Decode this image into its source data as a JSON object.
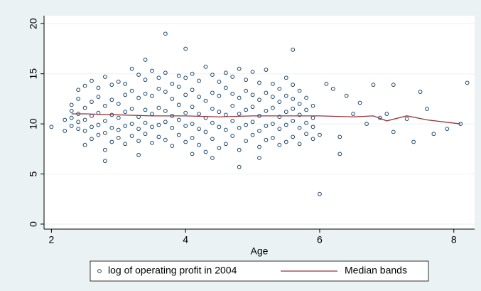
{
  "chart_data": {
    "type": "scatter",
    "xlabel": "Age",
    "xlim": [
      1.89,
      8.31
    ],
    "ylim": [
      -0.5,
      20.8
    ],
    "xticks": [
      2,
      4,
      6,
      8
    ],
    "yticks": [
      0,
      5,
      10,
      15,
      20
    ],
    "grid": true,
    "legend": "bottom",
    "series": [
      {
        "name": "log of operating profit in 2004",
        "type": "scatter",
        "color": "#1a476f",
        "x": [
          2.0,
          2.2,
          2.2,
          3.7,
          4.0,
          5.6,
          3.4,
          6.0,
          4.8,
          5.1,
          4.4,
          2.8,
          3.3,
          4.1,
          6.3,
          7.4,
          8.2,
          7.5,
          7.1,
          6.8,
          8.1,
          7.9,
          7.6,
          7.7,
          7.3,
          7.1,
          7.0,
          6.9,
          6.6,
          6.5,
          6.4,
          6.2,
          6.1,
          6.3,
          6.0,
          6.7,
          2.3,
          2.3,
          2.3,
          2.3,
          2.4,
          2.4,
          2.4,
          2.4,
          2.4,
          2.5,
          2.5,
          2.5,
          2.5,
          2.5,
          2.6,
          2.6,
          2.6,
          2.6,
          2.6,
          2.7,
          2.7,
          2.7,
          2.7,
          2.7,
          2.8,
          2.8,
          2.8,
          2.8,
          2.8,
          2.9,
          2.9,
          2.9,
          2.9,
          2.9,
          3.0,
          3.0,
          3.0,
          3.0,
          3.0,
          3.1,
          3.1,
          3.1,
          3.1,
          3.1,
          3.2,
          3.2,
          3.2,
          3.2,
          3.2,
          3.3,
          3.3,
          3.3,
          3.3,
          3.3,
          3.4,
          3.4,
          3.4,
          3.4,
          3.4,
          3.5,
          3.5,
          3.5,
          3.5,
          3.5,
          3.6,
          3.6,
          3.6,
          3.6,
          3.6,
          3.7,
          3.7,
          3.7,
          3.7,
          3.7,
          3.8,
          3.8,
          3.8,
          3.8,
          3.8,
          3.9,
          3.9,
          3.9,
          3.9,
          3.9,
          4.0,
          4.0,
          4.0,
          4.0,
          4.0,
          4.1,
          4.1,
          4.1,
          4.1,
          4.1,
          4.2,
          4.2,
          4.2,
          4.2,
          4.2,
          4.3,
          4.3,
          4.3,
          4.3,
          4.3,
          4.4,
          4.4,
          4.4,
          4.4,
          4.4,
          4.5,
          4.5,
          4.5,
          4.5,
          4.5,
          4.6,
          4.6,
          4.6,
          4.6,
          4.6,
          4.7,
          4.7,
          4.7,
          4.7,
          4.7,
          4.8,
          4.8,
          4.8,
          4.8,
          4.8,
          4.9,
          4.9,
          4.9,
          4.9,
          4.9,
          5.0,
          5.0,
          5.0,
          5.0,
          5.0,
          5.1,
          5.1,
          5.1,
          5.1,
          5.1,
          5.2,
          5.2,
          5.2,
          5.2,
          5.2,
          5.3,
          5.3,
          5.3,
          5.3,
          5.3,
          5.4,
          5.4,
          5.4,
          5.4,
          5.4,
          5.5,
          5.5,
          5.5,
          5.5,
          5.5,
          5.6,
          5.6,
          5.6,
          5.6,
          5.6,
          5.7,
          5.7,
          5.7,
          5.7,
          5.7,
          5.8,
          5.8,
          5.8,
          5.8,
          5.9,
          5.9,
          5.9,
          5.9
        ],
        "values": [
          9.7,
          9.3,
          10.4,
          19.0,
          17.5,
          17.4,
          16.4,
          3.0,
          5.7,
          6.6,
          6.6,
          6.3,
          6.9,
          7.0,
          7.0,
          8.2,
          14.1,
          13.2,
          13.9,
          13.9,
          10.0,
          9.5,
          11.5,
          9.0,
          10.5,
          9.2,
          11.0,
          10.6,
          12.1,
          11.0,
          12.8,
          13.5,
          14.0,
          8.7,
          8.9,
          10.0,
          9.8,
          10.6,
          11.3,
          11.9,
          9.5,
          10.2,
          11.0,
          12.5,
          13.4,
          7.9,
          9.3,
          10.4,
          11.6,
          13.8,
          8.5,
          9.7,
          10.8,
          12.2,
          14.3,
          8.9,
          9.9,
          11.1,
          12.7,
          13.6,
          7.4,
          9.1,
          10.3,
          11.8,
          14.7,
          8.2,
          9.6,
          10.9,
          12.4,
          13.9,
          8.6,
          9.4,
          10.6,
          12.0,
          14.2,
          8.0,
          9.8,
          11.2,
          12.9,
          14.0,
          8.8,
          10.0,
          11.5,
          13.3,
          15.5,
          8.3,
          9.5,
          10.7,
          12.6,
          14.9,
          9.0,
          10.1,
          11.4,
          13.0,
          14.4,
          8.1,
          9.7,
          11.0,
          12.8,
          15.3,
          8.7,
          9.9,
          11.6,
          13.5,
          14.6,
          8.4,
          10.2,
          11.3,
          13.2,
          15.1,
          7.8,
          9.6,
          10.8,
          12.5,
          14.0,
          8.9,
          10.4,
          11.9,
          13.7,
          14.8,
          8.2,
          9.8,
          11.1,
          12.9,
          14.6,
          8.6,
          10.0,
          11.7,
          13.4,
          15.0,
          7.9,
          9.5,
          11.0,
          12.7,
          14.3,
          7.2,
          9.2,
          10.6,
          12.3,
          15.7,
          8.5,
          10.1,
          11.5,
          13.1,
          14.9,
          7.6,
          9.7,
          11.2,
          12.8,
          14.2,
          8.0,
          9.4,
          10.9,
          13.6,
          15.1,
          8.8,
          10.3,
          11.8,
          13.0,
          14.7,
          7.4,
          9.6,
          11.0,
          12.6,
          15.5,
          8.3,
          9.9,
          11.4,
          13.3,
          14.4,
          8.9,
          10.2,
          11.7,
          12.9,
          15.2,
          7.7,
          9.3,
          10.8,
          12.4,
          14.1,
          8.4,
          9.8,
          11.3,
          13.1,
          15.4,
          8.6,
          10.0,
          11.6,
          12.7,
          14.0,
          7.9,
          9.5,
          10.7,
          12.2,
          13.5,
          8.2,
          9.9,
          11.2,
          12.8,
          14.6,
          8.7,
          10.3,
          11.5,
          12.5,
          13.9,
          8.0,
          9.6,
          10.9,
          12.0,
          13.3,
          9.0,
          10.1,
          11.4,
          12.6,
          8.5,
          9.7,
          10.6,
          11.8
        ]
      },
      {
        "name": "Median bands",
        "type": "line",
        "color": "#90353b",
        "x": [
          2.3,
          2.5,
          3.0,
          3.5,
          4.0,
          4.5,
          5.0,
          5.5,
          6.0,
          6.5,
          6.8,
          7.0,
          7.3,
          7.6,
          8.1
        ],
        "values": [
          11.0,
          11.0,
          10.9,
          10.8,
          10.8,
          10.7,
          10.8,
          10.8,
          10.8,
          10.7,
          10.8,
          10.3,
          10.8,
          10.4,
          10.0
        ]
      }
    ]
  }
}
